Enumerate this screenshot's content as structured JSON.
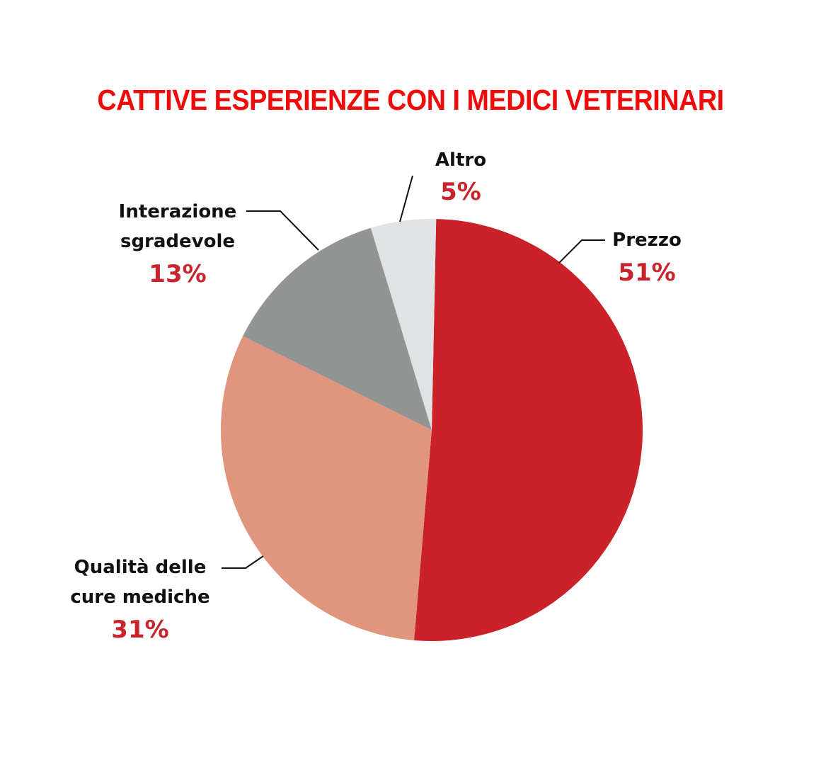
{
  "chart_data": {
    "type": "pie",
    "title": "CATTIVE ESPERIENZE CON I MEDICI VETERINARI",
    "slices": [
      {
        "label": [
          "Prezzo"
        ],
        "value": 51,
        "value_label": "51%",
        "color": "#CB2229"
      },
      {
        "label": [
          "Qualità delle",
          "cure mediche"
        ],
        "value": 31,
        "value_label": "31%",
        "color": "#E0957C"
      },
      {
        "label": [
          "Interazione",
          "sgradevole"
        ],
        "value": 13,
        "value_label": "13%",
        "color": "#939494"
      },
      {
        "label": [
          "Altro"
        ],
        "value": 5,
        "value_label": "5%",
        "color": "#E1E2E4"
      }
    ],
    "start": "top",
    "direction": "clockwise",
    "title_color": "#F00A0A",
    "value_label_color": "#C8242B"
  }
}
